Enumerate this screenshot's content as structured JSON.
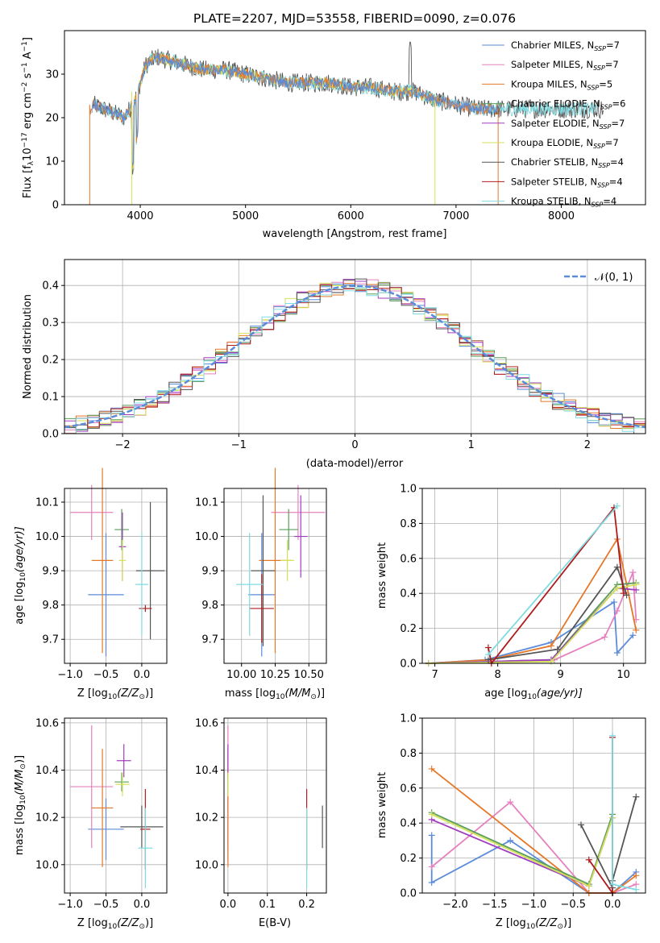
{
  "colors": {
    "Chabrier MILES": "#5b8bd9",
    "Salpeter MILES": "#e681bf",
    "Kroupa MILES": "#e57828",
    "Chabrier ELODIE": "#5a9e5a",
    "Salpeter ELODIE": "#a13ebf",
    "Kroupa ELODIE": "#d4e25a",
    "Chabrier STELIB": "#555555",
    "Salpeter STELIB": "#b01c1c",
    "Kroupa STELIB": "#7fdbe0"
  },
  "spectrum": {
    "title": "PLATE=2207, MJD=53558, FIBERID=0090, z=0.076",
    "xlabel": "wavelength [Angstrom, rest frame]",
    "ylabel_main": "Flux [f",
    "ylabel_sub_lambda": "λ",
    "ylabel_tail": "10",
    "ylabel_exp": "−17",
    "ylabel_rest": " erg cm",
    "ylabel_exp2": "−2",
    "ylabel_s": " s",
    "ylabel_exp3": "−1",
    "ylabel_A": " A",
    "ylabel_exp4": "−1",
    "ylabel_end": "]",
    "xticks": [
      "4000",
      "5000",
      "6000",
      "7000",
      "8000"
    ],
    "yticks": [
      "0",
      "10",
      "20",
      "30"
    ],
    "xlim": [
      3280,
      8800
    ],
    "ylim": [
      0,
      40
    ],
    "legend": [
      {
        "name": "Chabrier MILES",
        "n": "7"
      },
      {
        "name": "Salpeter MILES",
        "n": "7"
      },
      {
        "name": "Kroupa MILES",
        "n": "5"
      },
      {
        "name": "Chabrier ELODIE",
        "n": "6"
      },
      {
        "name": "Salpeter ELODIE",
        "n": "7"
      },
      {
        "name": "Kroupa ELODIE",
        "n": "7"
      },
      {
        "name": "Chabrier STELIB",
        "n": "4"
      },
      {
        "name": "Salpeter STELIB",
        "n": "4"
      },
      {
        "name": "Kroupa STELIB",
        "n": "4"
      }
    ],
    "nssp_label": "N",
    "nssp_sub": "SSP",
    "chart_data": {
      "type": "line",
      "x": [
        3550,
        3650,
        3750,
        3850,
        3950,
        4050,
        4150,
        4300,
        4450,
        4600,
        4800,
        5000,
        5200,
        5400,
        5600,
        5800,
        6000,
        6200,
        6400,
        6600,
        6800,
        7000,
        7200,
        7400
      ],
      "series": [
        {
          "values": [
            23,
            22,
            21,
            20,
            24,
            32,
            34,
            33,
            32,
            31,
            31,
            30,
            29,
            28,
            28,
            28,
            27,
            27,
            26,
            26,
            24,
            23,
            22,
            22
          ]
        }
      ],
      "xlim": [
        3280,
        8800
      ],
      "ylim": [
        0,
        40
      ]
    }
  },
  "histogram": {
    "xlabel": "(data-model)/error",
    "ylabel": "Normed distribution",
    "legend_label": "𝒩(0, 1)",
    "xticks": [
      "−2",
      "−1",
      "0",
      "1",
      "2"
    ],
    "yticks": [
      "0.0",
      "0.1",
      "0.2",
      "0.3",
      "0.4"
    ],
    "xlim": [
      -2.5,
      2.5
    ],
    "ylim": [
      0,
      0.47
    ],
    "chart_data": {
      "type": "line",
      "x": [
        -2.5,
        2.5
      ],
      "series": [
        {
          "name": "𝒩(0, 1)",
          "values": [
            0.0175,
            0.0175
          ]
        }
      ],
      "note_bins": "step histograms for each model approximate the standard normal"
    }
  },
  "panel_age_Z": {
    "xlabel_pre": "Z [log",
    "xlabel_sub": "10",
    "xlabel_post": "(Z/Z",
    "xlabel_sun": "⊙",
    "xlabel_end": ")]",
    "ylabel_pre": "age  [log",
    "ylabel_sub": "10",
    "ylabel_post": "(age/yr)]",
    "xticks": [
      "−1.0",
      "−0.5",
      "0.0"
    ],
    "yticks": [
      "9.7",
      "9.8",
      "9.9",
      "10.0",
      "10.1"
    ],
    "xlim": [
      -1.08,
      0.35
    ],
    "ylim": [
      9.63,
      10.14
    ],
    "chart_data": {
      "type": "scatter",
      "series": [
        {
          "name": "Chabrier MILES",
          "x": -0.5,
          "y": 9.83,
          "xerr": 0.25,
          "yerr": 0.18
        },
        {
          "name": "Salpeter MILES",
          "x": -0.7,
          "y": 10.07,
          "xerr": 0.3,
          "yerr": 0.08
        },
        {
          "name": "Kroupa MILES",
          "x": -0.55,
          "y": 9.93,
          "xerr": 0.15,
          "yerr": 0.27
        },
        {
          "name": "Chabrier ELODIE",
          "x": -0.28,
          "y": 10.02,
          "xerr": 0.1,
          "yerr": 0.06
        },
        {
          "name": "Salpeter ELODIE",
          "x": -0.27,
          "y": 9.97,
          "xerr": 0.05,
          "yerr": 0.1
        },
        {
          "name": "Kroupa ELODIE",
          "x": -0.27,
          "y": 9.93,
          "xerr": 0.05,
          "yerr": 0.06
        },
        {
          "name": "Chabrier STELIB",
          "x": 0.12,
          "y": 9.9,
          "xerr": 0.2,
          "yerr": 0.2
        },
        {
          "name": "Salpeter STELIB",
          "x": 0.05,
          "y": 9.79,
          "xerr": 0.09,
          "yerr": 0.01
        },
        {
          "name": "Kroupa STELIB",
          "x": 0.0,
          "y": 9.86,
          "xerr": 0.09,
          "yerr": 0.15
        }
      ]
    }
  },
  "panel_age_mass": {
    "xlabel_pre": "mass [log",
    "xlabel_sub": "10",
    "xlabel_post": "(M/M",
    "xlabel_sun": "⊙",
    "xlabel_end": ")]",
    "xticks": [
      "10.00",
      "10.25",
      "10.50"
    ],
    "yticks": [
      "9.7",
      "9.8",
      "9.9",
      "10.0",
      "10.1"
    ],
    "xlim": [
      9.87,
      10.63
    ],
    "ylim": [
      9.63,
      10.14
    ],
    "chart_data": {
      "type": "scatter",
      "series": [
        {
          "name": "Chabrier MILES",
          "x": 10.15,
          "y": 9.83,
          "xerr": 0.1,
          "yerr": 0.18
        },
        {
          "name": "Salpeter MILES",
          "x": 10.42,
          "y": 10.07,
          "xerr": 0.2,
          "yerr": 0.08
        },
        {
          "name": "Kroupa MILES",
          "x": 10.25,
          "y": 9.93,
          "xerr": 0.12,
          "yerr": 0.27
        },
        {
          "name": "Chabrier ELODIE",
          "x": 10.35,
          "y": 10.02,
          "xerr": 0.07,
          "yerr": 0.06
        },
        {
          "name": "Salpeter ELODIE",
          "x": 10.44,
          "y": 10.0,
          "xerr": 0.05,
          "yerr": 0.12
        },
        {
          "name": "Kroupa ELODIE",
          "x": 10.34,
          "y": 9.93,
          "xerr": 0.05,
          "yerr": 0.06
        },
        {
          "name": "Chabrier STELIB",
          "x": 10.16,
          "y": 9.9,
          "xerr": 0.09,
          "yerr": 0.22
        },
        {
          "name": "Salpeter STELIB",
          "x": 10.15,
          "y": 9.79,
          "xerr": 0.09,
          "yerr": 0.1
        },
        {
          "name": "Kroupa STELIB",
          "x": 10.06,
          "y": 9.86,
          "xerr": 0.1,
          "yerr": 0.15
        }
      ]
    }
  },
  "panel_weight_age": {
    "xlabel_pre": "age  [log",
    "xlabel_sub": "10",
    "xlabel_post": "(age/yr)]",
    "ylabel": "mass weight",
    "xticks": [
      "7",
      "8",
      "9",
      "10"
    ],
    "yticks": [
      "0.0",
      "0.2",
      "0.4",
      "0.6",
      "0.8",
      "1.0"
    ],
    "xlim": [
      6.8,
      10.35
    ],
    "ylim": [
      0,
      1.0
    ],
    "chart_data": {
      "type": "line",
      "series": [
        {
          "name": "Chabrier MILES",
          "x": [
            6.9,
            7.8,
            8.85,
            9.85,
            9.9,
            10.15
          ],
          "y": [
            0.0,
            0.02,
            0.12,
            0.35,
            0.06,
            0.16
          ]
        },
        {
          "name": "Salpeter MILES",
          "x": [
            6.9,
            8.9,
            9.7,
            9.9,
            10.15,
            10.2
          ],
          "y": [
            0.0,
            0.02,
            0.15,
            0.3,
            0.52,
            0.25
          ]
        },
        {
          "name": "Kroupa MILES",
          "x": [
            6.9,
            7.85,
            8.85,
            9.9,
            10.2
          ],
          "y": [
            0.0,
            0.02,
            0.1,
            0.71,
            0.19
          ]
        },
        {
          "name": "Chabrier ELODIE",
          "x": [
            6.9,
            8.85,
            9.9,
            10.2
          ],
          "y": [
            0.0,
            0.02,
            0.45,
            0.46
          ]
        },
        {
          "name": "Salpeter ELODIE",
          "x": [
            6.9,
            8.85,
            9.9,
            10.2
          ],
          "y": [
            0.0,
            0.02,
            0.43,
            0.42
          ]
        },
        {
          "name": "Kroupa ELODIE",
          "x": [
            6.9,
            8.85,
            9.9,
            10.2
          ],
          "y": [
            0.0,
            0.01,
            0.43,
            0.45
          ]
        },
        {
          "name": "Chabrier STELIB",
          "x": [
            7.85,
            8.95,
            9.9,
            10.05
          ],
          "y": [
            0.02,
            0.08,
            0.55,
            0.39
          ]
        },
        {
          "name": "Salpeter STELIB",
          "x": [
            7.85,
            7.9,
            9.85,
            10.0
          ],
          "y": [
            0.09,
            0.0,
            0.89,
            0.4
          ]
        },
        {
          "name": "Kroupa STELIB",
          "x": [
            7.85,
            9.9
          ],
          "y": [
            0.05,
            0.9
          ]
        }
      ]
    }
  },
  "panel_mass_Z": {
    "xlabel_pre": "Z [log",
    "xlabel_sub": "10",
    "xlabel_post": "(Z/Z",
    "xlabel_sun": "⊙",
    "xlabel_end": ")]",
    "ylabel_pre": "mass [log",
    "ylabel_sub": "10",
    "ylabel_post": "(M/M",
    "ylabel_sun": "⊙",
    "ylabel_end": ")]",
    "xticks": [
      "−1.0",
      "−0.5",
      "0.0"
    ],
    "yticks": [
      "10.0",
      "10.2",
      "10.4",
      "10.6"
    ],
    "xlim": [
      -1.08,
      0.35
    ],
    "ylim": [
      9.88,
      10.62
    ],
    "chart_data": {
      "type": "scatter",
      "series": [
        {
          "name": "Chabrier MILES",
          "x": -0.5,
          "y": 10.15,
          "xerr": 0.25,
          "yerr": 0.13
        },
        {
          "name": "Salpeter MILES",
          "x": -0.7,
          "y": 10.33,
          "xerr": 0.3,
          "yerr": 0.26
        },
        {
          "name": "Kroupa MILES",
          "x": -0.55,
          "y": 10.24,
          "xerr": 0.15,
          "yerr": 0.25
        },
        {
          "name": "Chabrier ELODIE",
          "x": -0.28,
          "y": 10.35,
          "xerr": 0.1,
          "yerr": 0.04
        },
        {
          "name": "Salpeter ELODIE",
          "x": -0.25,
          "y": 10.44,
          "xerr": 0.1,
          "yerr": 0.07
        },
        {
          "name": "Kroupa ELODIE",
          "x": -0.27,
          "y": 10.34,
          "xerr": 0.1,
          "yerr": 0.05
        },
        {
          "name": "Chabrier STELIB",
          "x": 0.0,
          "y": 10.16,
          "xerr": 0.3,
          "yerr": 0.09
        },
        {
          "name": "Salpeter STELIB",
          "x": 0.05,
          "y": 10.15,
          "xerr": 0.07,
          "yerr": 0.17
        },
        {
          "name": "Kroupa STELIB",
          "x": 0.05,
          "y": 10.07,
          "xerr": 0.1,
          "yerr": 0.17
        }
      ]
    }
  },
  "panel_mass_ebv": {
    "xlabel": "E(B-V)",
    "xticks": [
      "0.0",
      "0.1",
      "0.2"
    ],
    "yticks": [
      "10.0",
      "10.2",
      "10.4",
      "10.6"
    ],
    "xlim": [
      -0.01,
      0.25
    ],
    "ylim": [
      9.88,
      10.62
    ],
    "chart_data": {
      "type": "scatter",
      "series": [
        {
          "name": "Chabrier MILES",
          "x": 0.0,
          "y": 10.15,
          "yerr": 0.13
        },
        {
          "name": "Salpeter MILES",
          "x": 0.0,
          "y": 10.33,
          "yerr": 0.26
        },
        {
          "name": "Kroupa MILES",
          "x": 0.0,
          "y": 10.24,
          "yerr": 0.25
        },
        {
          "name": "Chabrier ELODIE",
          "x": 0.0,
          "y": 10.35,
          "yerr": 0.04
        },
        {
          "name": "Salpeter ELODIE",
          "x": 0.0,
          "y": 10.44,
          "yerr": 0.07
        },
        {
          "name": "Kroupa ELODIE",
          "x": 0.0,
          "y": 10.34,
          "yerr": 0.05
        },
        {
          "name": "Chabrier STELIB",
          "x": 0.24,
          "y": 10.16,
          "yerr": 0.09
        },
        {
          "name": "Salpeter STELIB",
          "x": 0.2,
          "y": 10.15,
          "yerr": 0.17
        },
        {
          "name": "Kroupa STELIB",
          "x": 0.2,
          "y": 10.07,
          "yerr": 0.17
        }
      ]
    }
  },
  "panel_weight_Z": {
    "xlabel_pre": "Z [log",
    "xlabel_sub": "10",
    "xlabel_post": "(Z/Z",
    "xlabel_sun": "⊙",
    "xlabel_end": ")]",
    "ylabel": "mass weight",
    "xticks": [
      "−2.0",
      "−1.5",
      "−1.0",
      "−0.5",
      "0.0"
    ],
    "yticks": [
      "0.0",
      "0.2",
      "0.4",
      "0.6",
      "0.8",
      "1.0"
    ],
    "xlim": [
      -2.42,
      0.42
    ],
    "ylim": [
      0,
      1.0
    ],
    "chart_data": {
      "type": "line",
      "series": [
        {
          "name": "Chabrier MILES",
          "x": [
            -2.3,
            -2.3,
            -1.3,
            -0.3,
            0.0,
            0.3
          ],
          "y": [
            0.33,
            0.06,
            0.3,
            0.0,
            0.0,
            0.12
          ]
        },
        {
          "name": "Salpeter MILES",
          "x": [
            -2.3,
            -1.3,
            -0.3,
            0.0,
            0.3
          ],
          "y": [
            0.15,
            0.52,
            0.0,
            0.0,
            0.05
          ]
        },
        {
          "name": "Kroupa MILES",
          "x": [
            -2.3,
            -0.3,
            0.0,
            0.3
          ],
          "y": [
            0.71,
            0.0,
            0.0,
            0.1
          ]
        },
        {
          "name": "Chabrier ELODIE",
          "x": [
            -2.3,
            -0.3,
            0.0
          ],
          "y": [
            0.46,
            0.05,
            0.45
          ]
        },
        {
          "name": "Salpeter ELODIE",
          "x": [
            -2.3,
            -0.3,
            0.0
          ],
          "y": [
            0.42,
            0.04,
            0.43
          ]
        },
        {
          "name": "Kroupa ELODIE",
          "x": [
            -2.3,
            -0.3,
            0.0
          ],
          "y": [
            0.45,
            0.04,
            0.43
          ]
        },
        {
          "name": "Chabrier STELIB",
          "x": [
            -0.4,
            0.0,
            0.0,
            0.3
          ],
          "y": [
            0.39,
            0.03,
            0.07,
            0.55
          ]
        },
        {
          "name": "Salpeter STELIB",
          "x": [
            -0.3,
            0.0,
            0.0
          ],
          "y": [
            0.19,
            0.0,
            0.89
          ]
        },
        {
          "name": "Kroupa STELIB",
          "x": [
            0.0,
            0.0,
            0.3
          ],
          "y": [
            0.9,
            0.05,
            0.02
          ]
        }
      ]
    }
  }
}
